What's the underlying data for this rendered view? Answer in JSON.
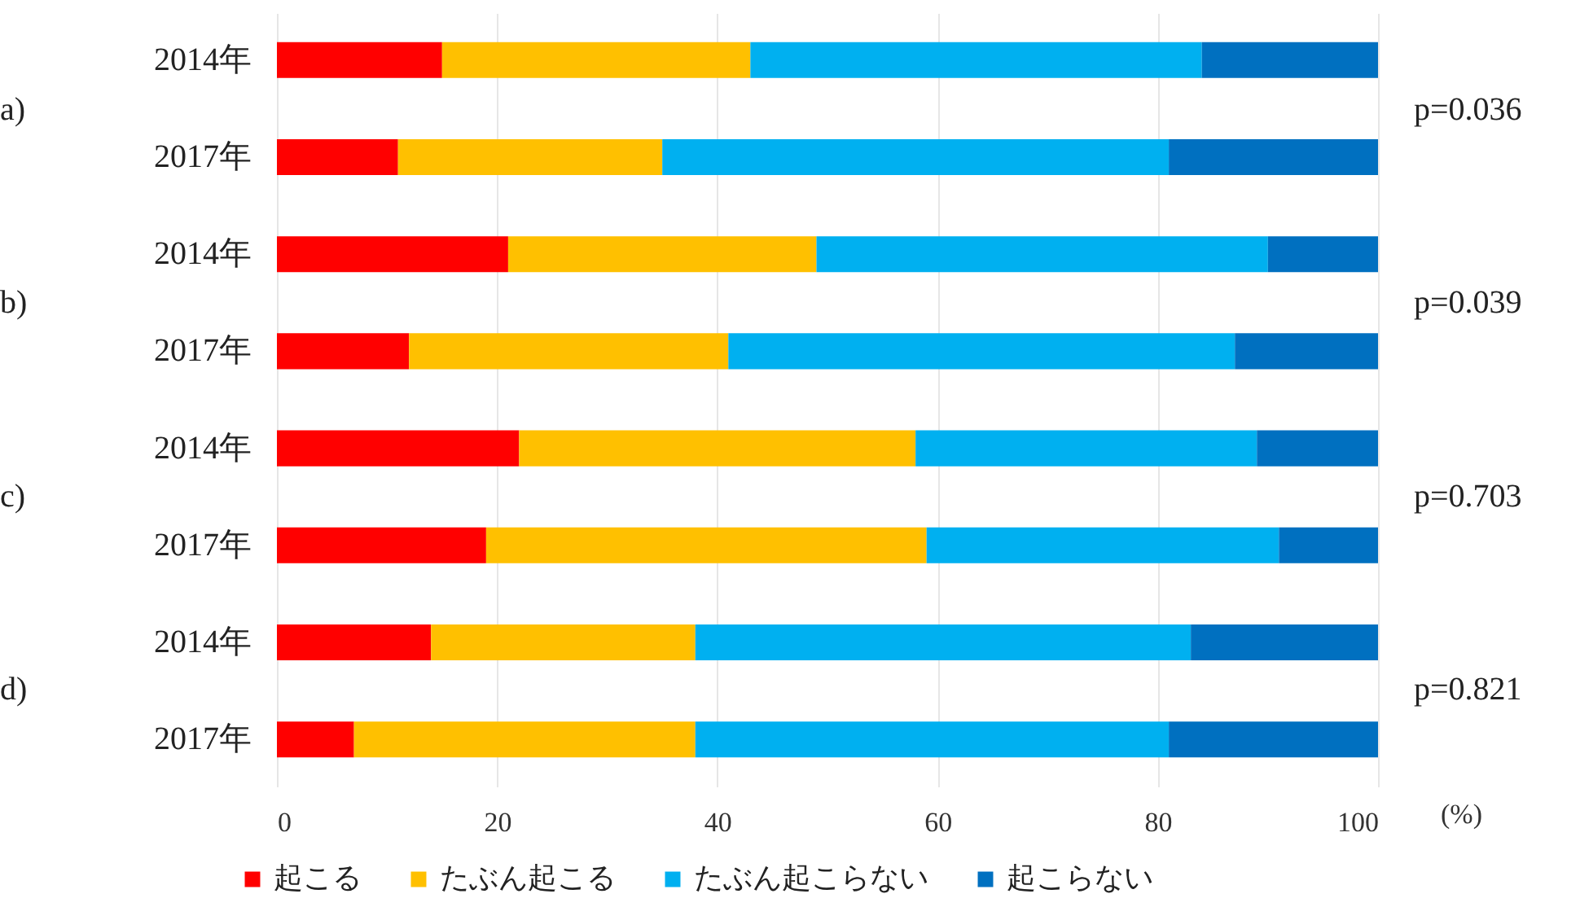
{
  "chart_data": {
    "type": "bar",
    "orientation": "horizontal",
    "stacked": true,
    "xlabel": "(%)",
    "categories": [
      "2014年",
      "2017年",
      "2014年",
      "2017年",
      "2014年",
      "2017年",
      "2014年",
      "2017年"
    ],
    "series": [
      {
        "name": "起こる",
        "color": "#ff0000",
        "values": [
          15,
          11,
          21,
          12,
          22,
          19,
          14,
          7
        ]
      },
      {
        "name": "たぶん起こる",
        "color": "#ffc000",
        "values": [
          28,
          24,
          28,
          29,
          36,
          40,
          24,
          31
        ]
      },
      {
        "name": "たぶん起こらない",
        "color": "#00b0f0",
        "values": [
          41,
          46,
          41,
          46,
          31,
          32,
          45,
          43
        ]
      },
      {
        "name": "起こらない",
        "color": "#0070c0",
        "values": [
          16,
          19,
          10,
          13,
          11,
          9,
          17,
          19
        ]
      }
    ],
    "xlim": [
      0,
      100
    ],
    "xticks": [
      0,
      20,
      40,
      60,
      80,
      100
    ],
    "grid": "x",
    "legend": "bottom",
    "annotations": [
      "a)",
      "b)",
      "c)",
      "d)",
      "p=0.036",
      "p=0.039",
      "p=0.703",
      "p=0.821"
    ]
  }
}
